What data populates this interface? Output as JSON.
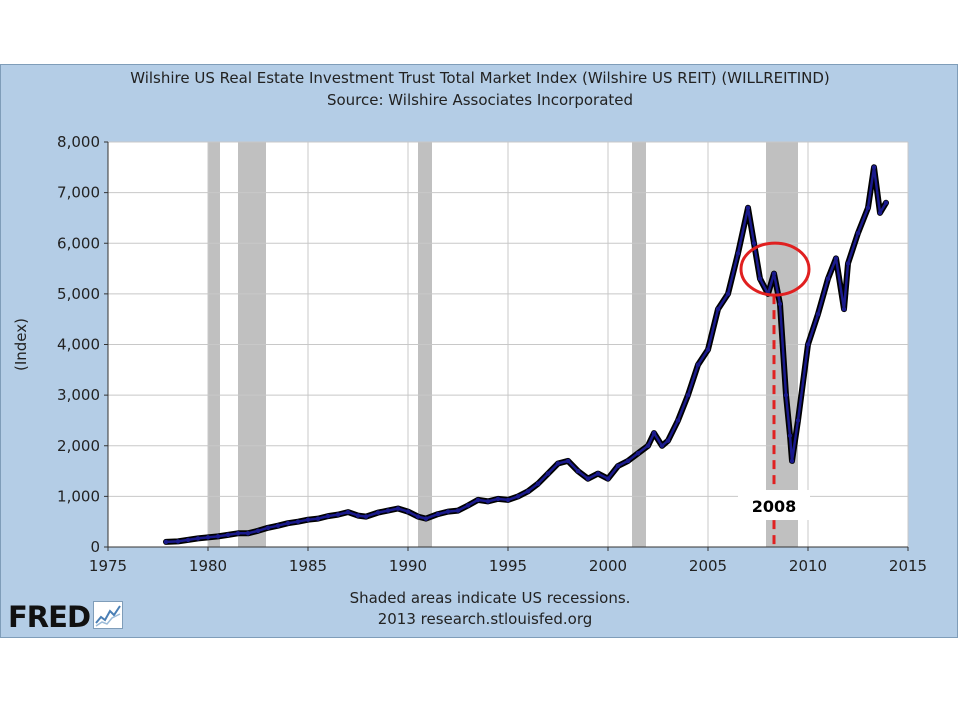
{
  "chart_data": {
    "type": "line",
    "title": "Wilshire US Real Estate Investment Trust Total Market Index (Wilshire US REIT) (WILLREITIND)",
    "subtitle": "Source: Wilshire Associates Incorporated",
    "ylabel": "(Index)",
    "xlabel": "",
    "xlim": [
      1975,
      2015
    ],
    "ylim": [
      0,
      8000
    ],
    "x_ticks": [
      1975,
      1980,
      1985,
      1990,
      1995,
      2000,
      2005,
      2010,
      2015
    ],
    "y_ticks": [
      0,
      1000,
      2000,
      3000,
      4000,
      5000,
      6000,
      7000,
      8000
    ],
    "x_tick_labels": [
      "1975",
      "1980",
      "1985",
      "1990",
      "1995",
      "2000",
      "2005",
      "2010",
      "2015"
    ],
    "y_tick_labels": [
      "0",
      "1,000",
      "2,000",
      "3,000",
      "4,000",
      "5,000",
      "6,000",
      "7,000",
      "8,000"
    ],
    "grid": true,
    "series": [
      {
        "name": "",
        "color": "#1a1a8c",
        "x": [
          1977.9,
          1978.5,
          1979.0,
          1979.5,
          1980.0,
          1980.5,
          1981.0,
          1981.5,
          1982.0,
          1982.5,
          1983.0,
          1983.5,
          1984.0,
          1984.5,
          1985.0,
          1985.5,
          1986.0,
          1986.5,
          1987.0,
          1987.5,
          1987.9,
          1988.5,
          1989.0,
          1989.5,
          1990.0,
          1990.5,
          1990.9,
          1991.5,
          1992.0,
          1992.5,
          1993.0,
          1993.5,
          1994.0,
          1994.5,
          1995.0,
          1995.5,
          1996.0,
          1996.5,
          1997.0,
          1997.5,
          1998.0,
          1998.5,
          1999.0,
          1999.5,
          2000.0,
          2000.5,
          2001.0,
          2001.5,
          2002.0,
          2002.3,
          2002.7,
          2003.0,
          2003.5,
          2004.0,
          2004.5,
          2005.0,
          2005.5,
          2006.0,
          2006.5,
          2007.0,
          2007.3,
          2007.6,
          2008.0,
          2008.3,
          2008.6,
          2008.9,
          2009.1,
          2009.2,
          2009.5,
          2010.0,
          2010.5,
          2011.0,
          2011.4,
          2011.8,
          2012.0,
          2012.5,
          2013.0,
          2013.3,
          2013.6,
          2013.9
        ],
        "values": [
          100,
          110,
          140,
          170,
          190,
          210,
          240,
          270,
          270,
          320,
          380,
          420,
          470,
          500,
          540,
          560,
          610,
          640,
          690,
          620,
          600,
          680,
          720,
          760,
          700,
          600,
          560,
          650,
          700,
          720,
          820,
          930,
          900,
          950,
          930,
          1000,
          1100,
          1250,
          1450,
          1650,
          1700,
          1500,
          1350,
          1450,
          1350,
          1600,
          1700,
          1850,
          2000,
          2250,
          2000,
          2100,
          2500,
          3000,
          3600,
          3900,
          4700,
          5000,
          5800,
          6700,
          6000,
          5300,
          5000,
          5400,
          4800,
          3000,
          2200,
          1700,
          2500,
          4000,
          4600,
          5300,
          5700,
          4700,
          5600,
          6200,
          6700,
          7500,
          6600,
          6800
        ]
      }
    ],
    "recessions": [
      [
        1980.0,
        1980.6
      ],
      [
        1981.5,
        1982.9
      ],
      [
        1990.5,
        1991.2
      ],
      [
        2001.2,
        2001.9
      ],
      [
        2007.9,
        2009.5
      ]
    ],
    "annotation": {
      "label": "2008",
      "x": 2008.3,
      "y": 5450
    }
  },
  "footer": {
    "recession_note": "Shaded areas indicate US recessions.",
    "source": "2013 research.stlouisfed.org"
  },
  "logo": {
    "text": "FRED",
    "icon": "line-chart-icon"
  },
  "colors": {
    "frame_background": "#b4cde6",
    "plot_background": "#ffffff",
    "recession_shading": "#c0c0c0",
    "series": "#1a1a8c",
    "annotation": "#e02020"
  }
}
